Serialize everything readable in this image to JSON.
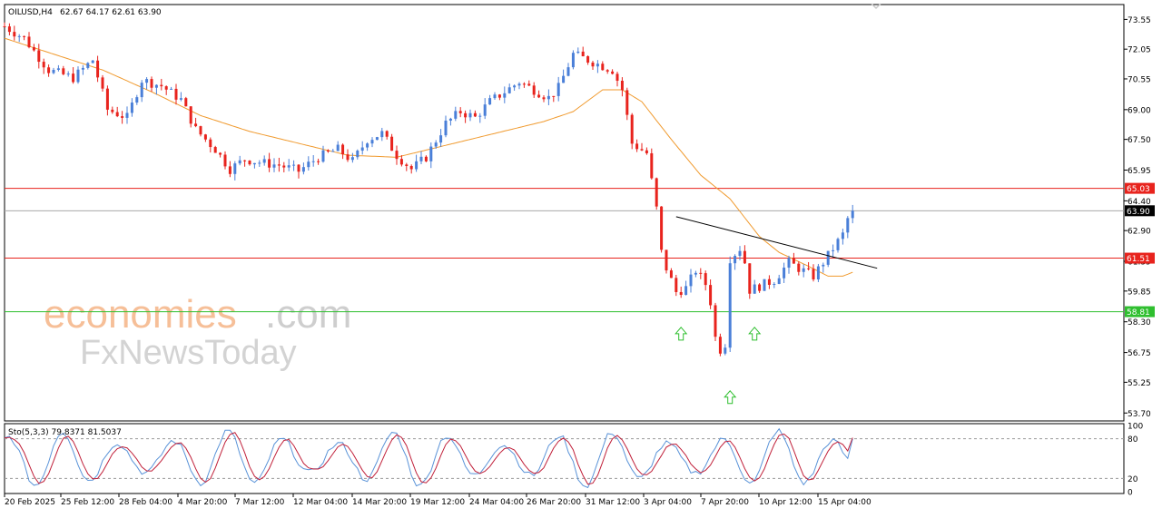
{
  "chart_data": {
    "type": "candlestick",
    "symbol_label": "OILUSD,H4",
    "ohlc_label": "62.67 64.17 62.61 63.90",
    "ylim": [
      53.3,
      74.3
    ],
    "y_ticks": [
      "73.55",
      "72.05",
      "70.55",
      "69.00",
      "67.50",
      "65.95",
      "64.40",
      "62.90",
      "61.35",
      "59.85",
      "58.30",
      "56.75",
      "55.25",
      "53.70"
    ],
    "x_labels": [
      "20 Feb 2025",
      "25 Feb 12:00",
      "28 Feb 04:00",
      "4 Mar 20:00",
      "7 Mar 12:00",
      "12 Mar 04:00",
      "14 Mar 20:00",
      "19 Mar 12:00",
      "24 Mar 04:00",
      "26 Mar 20:00",
      "31 Mar 12:00",
      "3 Apr 04:00",
      "7 Apr 20:00",
      "10 Apr 12:00",
      "15 Apr 04:00"
    ],
    "price_path": [
      [
        0,
        73.2
      ],
      [
        4,
        72.6
      ],
      [
        9,
        71.0
      ],
      [
        14,
        70.6
      ],
      [
        18,
        71.5
      ],
      [
        21,
        69.0
      ],
      [
        25,
        68.6
      ],
      [
        28,
        70.5
      ],
      [
        32,
        70.2
      ],
      [
        36,
        69.5
      ],
      [
        39,
        68.0
      ],
      [
        43,
        67.0
      ],
      [
        46,
        66.0
      ],
      [
        49,
        66.5
      ],
      [
        53,
        66.3
      ],
      [
        56,
        66.2
      ],
      [
        60,
        65.9
      ],
      [
        64,
        66.6
      ],
      [
        68,
        67.0
      ],
      [
        71,
        66.4
      ],
      [
        74,
        67.5
      ],
      [
        77,
        67.8
      ],
      [
        80,
        66.7
      ],
      [
        83,
        66.0
      ],
      [
        86,
        66.6
      ],
      [
        90,
        68.3
      ],
      [
        93,
        68.9
      ],
      [
        96,
        68.6
      ],
      [
        99,
        69.4
      ],
      [
        102,
        69.9
      ],
      [
        105,
        70.4
      ],
      [
        108,
        70.0
      ],
      [
        111,
        69.6
      ],
      [
        113,
        70.1
      ],
      [
        116,
        71.8
      ],
      [
        119,
        71.5
      ],
      [
        122,
        71.2
      ],
      [
        124,
        71.0
      ],
      [
        126,
        70.0
      ],
      [
        128,
        67.3
      ],
      [
        131,
        66.8
      ],
      [
        133,
        64.0
      ],
      [
        134,
        61.8
      ],
      [
        135,
        61.0
      ],
      [
        137,
        59.8
      ],
      [
        139,
        60.0
      ],
      [
        141,
        60.9
      ],
      [
        143,
        60.2
      ],
      [
        144,
        59.3
      ],
      [
        145,
        57.5
      ],
      [
        146,
        56.9
      ],
      [
        147,
        57.2
      ],
      [
        148,
        61.5
      ],
      [
        150,
        62.0
      ],
      [
        151,
        61.3
      ],
      [
        152,
        59.9
      ],
      [
        154,
        60.1
      ],
      [
        157,
        60.4
      ],
      [
        160,
        61.3
      ],
      [
        162,
        61.0
      ],
      [
        165,
        60.6
      ],
      [
        167,
        61.3
      ],
      [
        169,
        62.0
      ],
      [
        171,
        62.7
      ],
      [
        172,
        63.5
      ],
      [
        173,
        63.9
      ]
    ],
    "ma_path": [
      [
        0,
        72.6
      ],
      [
        10,
        71.8
      ],
      [
        20,
        71.0
      ],
      [
        30,
        69.9
      ],
      [
        40,
        68.7
      ],
      [
        50,
        67.9
      ],
      [
        60,
        67.3
      ],
      [
        70,
        66.7
      ],
      [
        80,
        66.6
      ],
      [
        90,
        67.2
      ],
      [
        100,
        67.8
      ],
      [
        110,
        68.4
      ],
      [
        116,
        68.9
      ],
      [
        122,
        70.0
      ],
      [
        126,
        70.0
      ],
      [
        130,
        69.4
      ],
      [
        136,
        67.5
      ],
      [
        142,
        65.7
      ],
      [
        148,
        64.5
      ],
      [
        154,
        62.6
      ],
      [
        158,
        61.8
      ],
      [
        164,
        61.1
      ],
      [
        168,
        60.6
      ],
      [
        171,
        60.6
      ],
      [
        173,
        60.8
      ]
    ],
    "horizontal_lines": [
      {
        "value": 65.03,
        "label": "65.03",
        "color": "#e8231d",
        "badge": "#e8231d"
      },
      {
        "value": 63.9,
        "label": "63.90",
        "color": "#a8a8a8",
        "badge": "#000000"
      },
      {
        "value": 61.51,
        "label": "61.51",
        "color": "#e8231d",
        "badge": "#e8231d"
      },
      {
        "value": 58.81,
        "label": "58.81",
        "color": "#2fbf2f",
        "badge": "#2fbf2f"
      }
    ],
    "trendline": {
      "from": [
        137,
        63.6
      ],
      "to": [
        178,
        61.0
      ],
      "color": "#000000"
    },
    "arrows": [
      [
        138,
        57.7
      ],
      [
        148,
        54.5
      ],
      [
        153,
        57.7
      ]
    ],
    "stochastic": {
      "label": "Sto(5,3,3) 79.8371 81.5037",
      "ylim": [
        0,
        100
      ],
      "levels": [
        20,
        80
      ],
      "y_ticks": [
        "100",
        "80",
        "20",
        "0"
      ]
    },
    "colors": {
      "bull": "#4a7fd8",
      "bear": "#e8231d",
      "ma": "#f09a2e",
      "k": "#5a93d8",
      "d": "#c0203a"
    },
    "watermarks": [
      "economies",
      ".com",
      "FxNewsToday"
    ]
  }
}
